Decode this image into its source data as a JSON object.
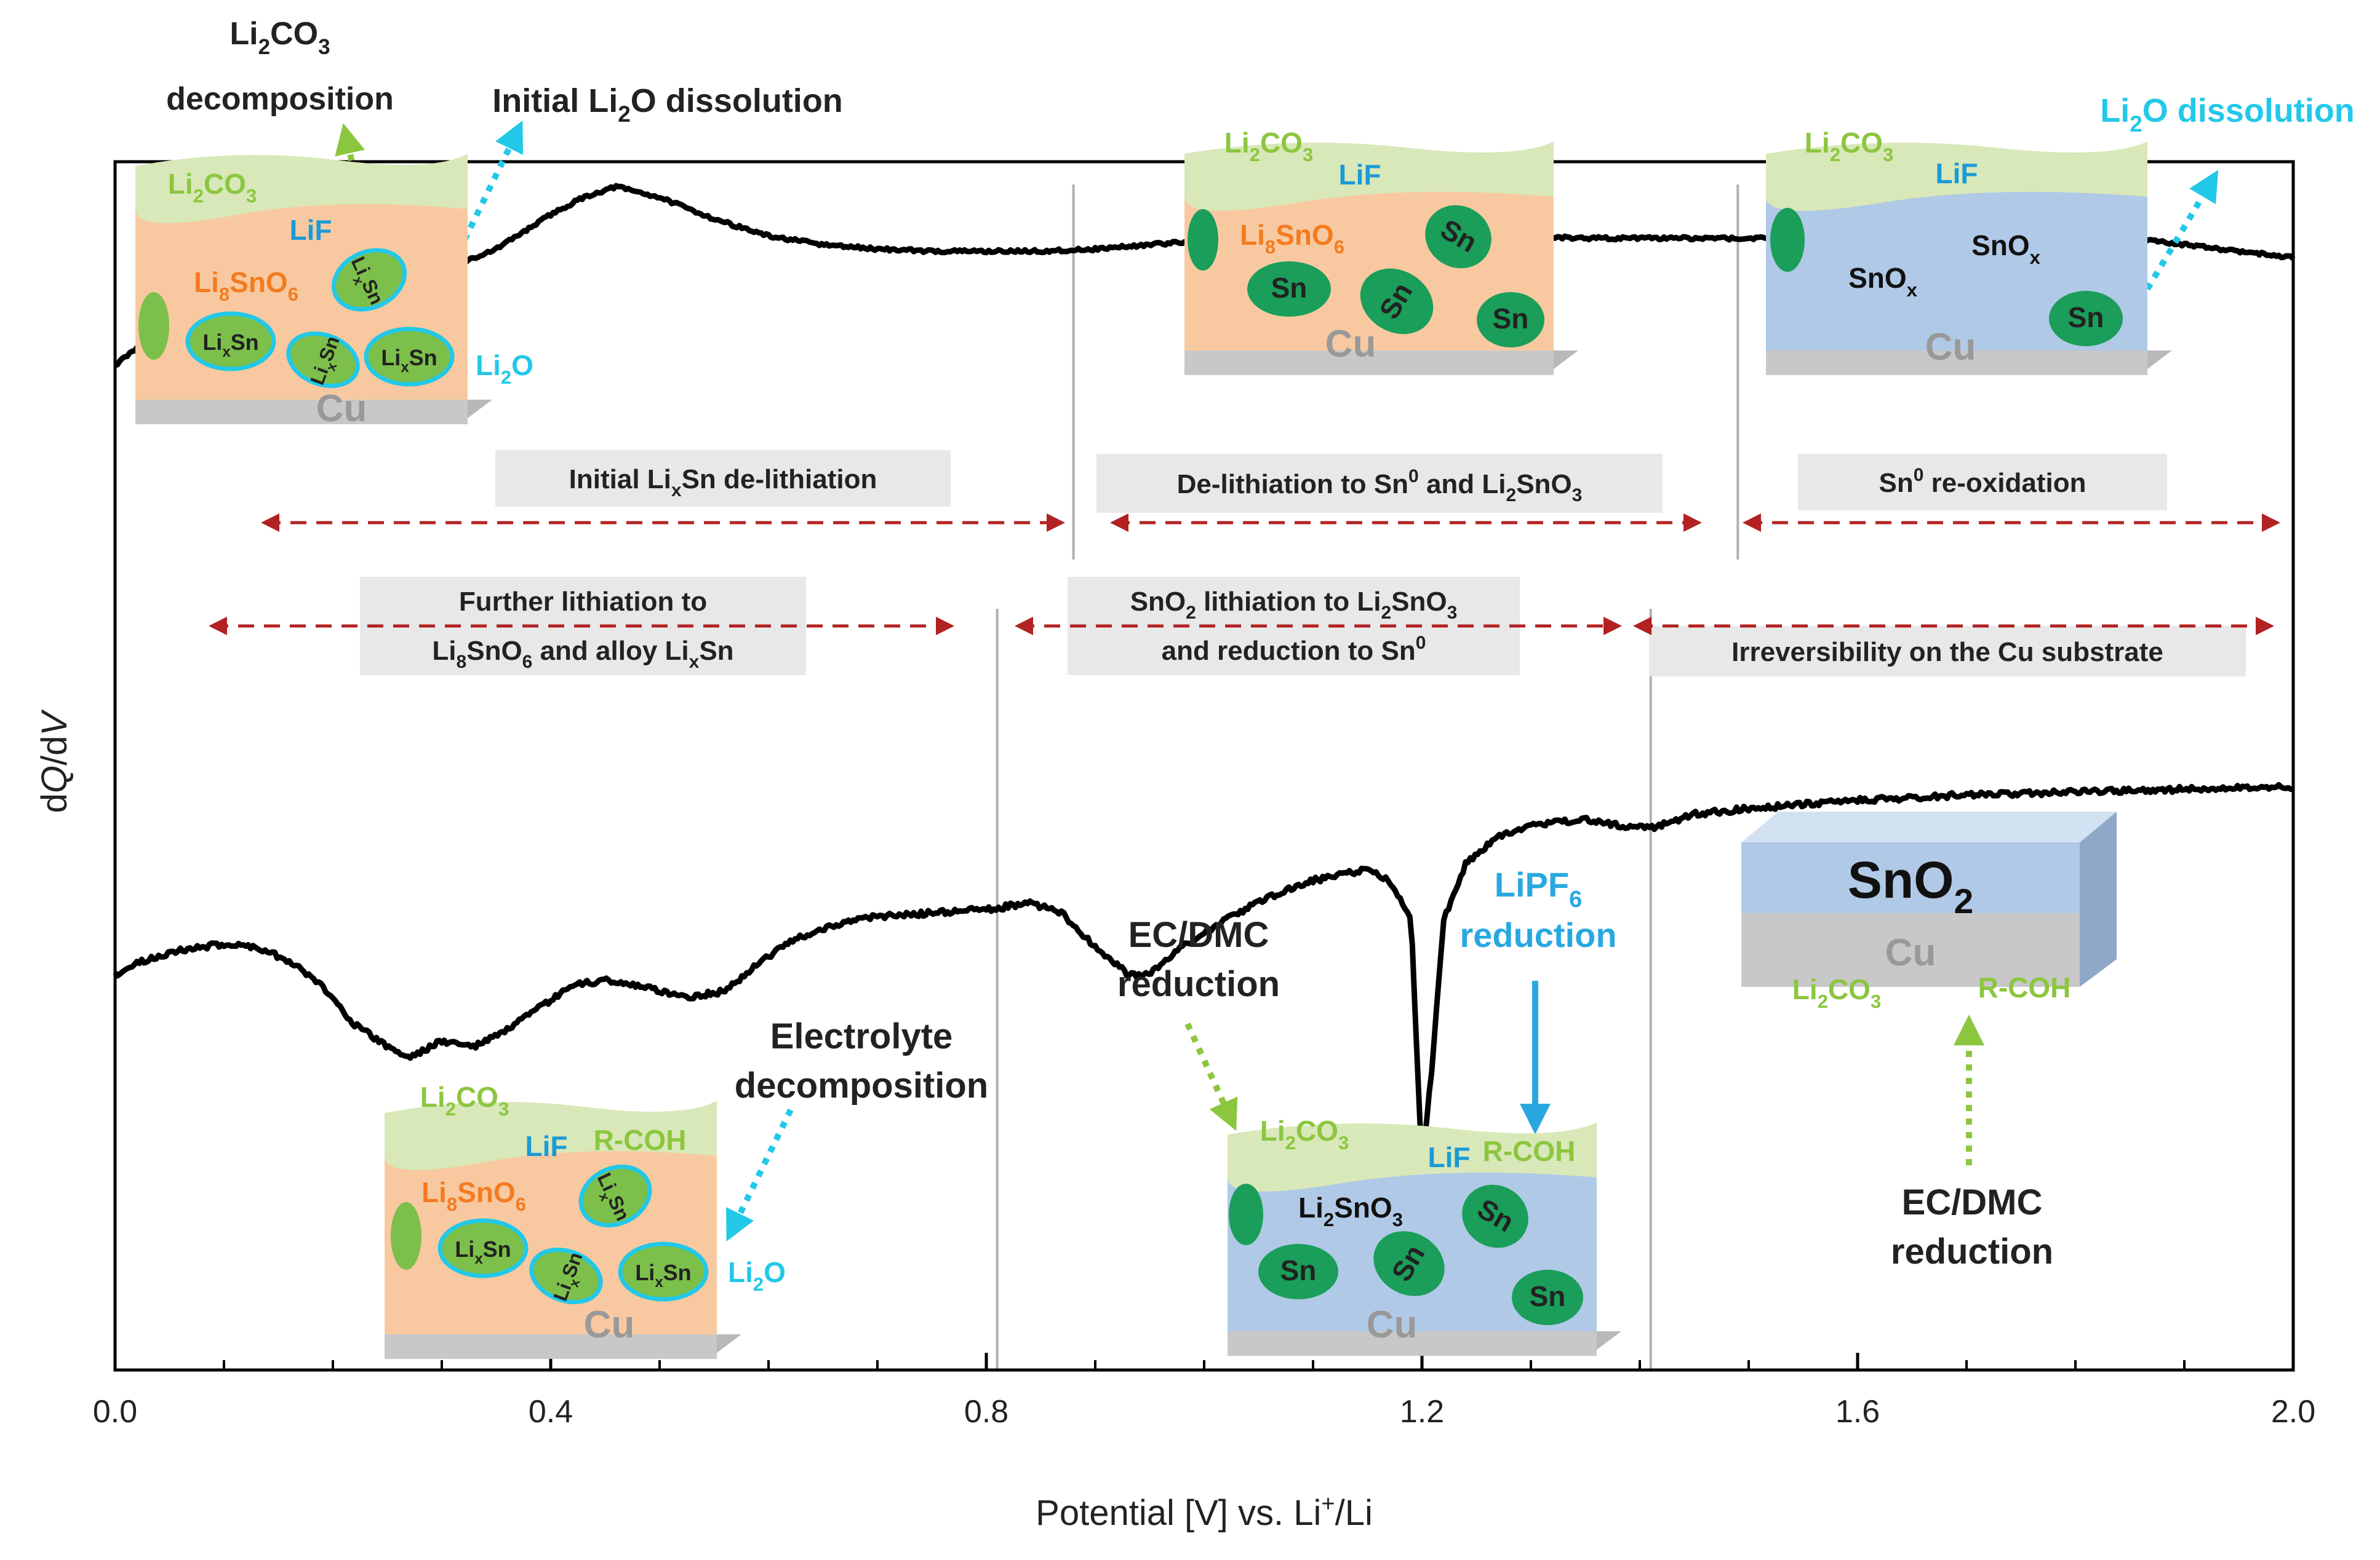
{
  "chart_data": {
    "type": "line",
    "title": "",
    "xlabel": "Potential [V] vs. Li+/Li",
    "xlabel_parts": {
      "pre": "Potential [V] vs. Li",
      "sup": "+",
      "post": "/Li"
    },
    "ylabel": "dQ/dV",
    "ylabel_parts": {
      "d1": "d",
      "q": "Q",
      "slash": "/d",
      "v": "V"
    },
    "xlim": [
      0.0,
      2.0
    ],
    "x_ticks": [
      "0.0",
      "0.4",
      "0.8",
      "1.2",
      "1.6",
      "2.0"
    ],
    "y_ticks": "none",
    "grid": false,
    "regions": {
      "delithiation_boundaries_V": [
        0.88,
        1.49
      ],
      "lithiation_boundaries_V": [
        0.81,
        1.41
      ]
    },
    "series": [
      {
        "name": "",
        "role": "de-lithiation (upper curve, relative dQ/dV)",
        "x": [
          0.0,
          0.02,
          0.04,
          0.06,
          0.08,
          0.1,
          0.15,
          0.2,
          0.25,
          0.3,
          0.35,
          0.4,
          0.43,
          0.46,
          0.5,
          0.55,
          0.6,
          0.65,
          0.7,
          0.75,
          0.8,
          0.85,
          0.9,
          0.95,
          1.0,
          1.05,
          1.1,
          1.15,
          1.2,
          1.25,
          1.3,
          1.35,
          1.4,
          1.45,
          1.5,
          1.55,
          1.6,
          1.65,
          1.7,
          1.75,
          1.8,
          1.85,
          1.9,
          1.95,
          2.0
        ],
        "y": [
          0.58,
          0.62,
          0.67,
          0.71,
          0.75,
          0.76,
          0.765,
          0.77,
          0.78,
          0.8,
          0.85,
          0.93,
          0.97,
          0.995,
          0.97,
          0.92,
          0.88,
          0.86,
          0.85,
          0.845,
          0.845,
          0.845,
          0.85,
          0.86,
          0.87,
          0.88,
          0.885,
          0.89,
          0.89,
          0.885,
          0.88,
          0.875,
          0.875,
          0.875,
          0.875,
          0.876,
          0.877,
          0.878,
          0.879,
          0.88,
          0.88,
          0.875,
          0.86,
          0.845,
          0.83
        ]
      },
      {
        "name": "",
        "role": "lithiation (lower curve, relative dQ/dV)",
        "x": [
          0.0,
          0.02,
          0.05,
          0.08,
          0.1,
          0.13,
          0.16,
          0.19,
          0.22,
          0.25,
          0.27,
          0.28,
          0.3,
          0.33,
          0.36,
          0.39,
          0.42,
          0.45,
          0.48,
          0.5,
          0.53,
          0.56,
          0.59,
          0.62,
          0.66,
          0.7,
          0.74,
          0.78,
          0.81,
          0.84,
          0.87,
          0.9,
          0.93,
          0.95,
          0.98,
          1.02,
          1.06,
          1.1,
          1.15,
          1.17,
          1.19,
          1.2,
          1.21,
          1.22,
          1.24,
          1.27,
          1.3,
          1.35,
          1.38,
          1.41,
          1.45,
          1.5,
          1.6,
          1.7,
          1.8,
          1.9,
          2.0
        ],
        "y": [
          0.35,
          0.37,
          0.39,
          0.4,
          0.405,
          0.4,
          0.375,
          0.33,
          0.26,
          0.22,
          0.2,
          0.21,
          0.23,
          0.22,
          0.25,
          0.29,
          0.33,
          0.34,
          0.33,
          0.32,
          0.31,
          0.32,
          0.37,
          0.41,
          0.44,
          0.455,
          0.46,
          0.465,
          0.47,
          0.48,
          0.46,
          0.4,
          0.35,
          0.35,
          0.4,
          0.45,
          0.49,
          0.52,
          0.54,
          0.52,
          0.45,
          0.0,
          0.2,
          0.45,
          0.55,
          0.6,
          0.62,
          0.63,
          0.62,
          0.615,
          0.64,
          0.65,
          0.665,
          0.675,
          0.68,
          0.685,
          0.69
        ]
      }
    ],
    "annotations": {
      "delith_regions": [
        {
          "parts": [
            [
              "Initial Li",
              ""
            ],
            [
              "x",
              "sub"
            ],
            [
              "Sn de-lithiation",
              ""
            ]
          ]
        },
        {
          "parts": [
            [
              "De-lithiation to Sn",
              ""
            ],
            [
              "0",
              "sup"
            ],
            [
              " and Li",
              ""
            ],
            [
              "2",
              "sub"
            ],
            [
              "SnO",
              ""
            ],
            [
              "3",
              "sub"
            ]
          ]
        },
        {
          "parts": [
            [
              "Sn",
              ""
            ],
            [
              "0",
              "sup"
            ],
            [
              " re-oxidation",
              ""
            ]
          ]
        }
      ],
      "lith_regions": [
        {
          "line1": [
            [
              "Further lithiation to",
              ""
            ]
          ],
          "line2": [
            [
              "Li",
              ""
            ],
            [
              "8",
              "sub"
            ],
            [
              "SnO",
              ""
            ],
            [
              "6",
              "sub"
            ],
            [
              " and alloy Li",
              ""
            ],
            [
              "x",
              "sub"
            ],
            [
              "Sn",
              ""
            ]
          ]
        },
        {
          "line1": [
            [
              "SnO",
              ""
            ],
            [
              "2",
              "sub"
            ],
            [
              " lithiation to Li",
              ""
            ],
            [
              "2",
              "sub"
            ],
            [
              "SnO",
              ""
            ],
            [
              "3",
              "sub"
            ]
          ],
          "line2": [
            [
              "and reduction to Sn",
              ""
            ],
            [
              "0",
              "sup"
            ]
          ]
        },
        {
          "line1": [
            [
              "Irreversibility on the Cu substrate",
              ""
            ]
          ]
        }
      ],
      "process_labels": {
        "li2co3_decomposition": {
          "line1": [
            [
              "Li",
              ""
            ],
            [
              "2",
              "sub"
            ],
            [
              "CO",
              ""
            ],
            [
              "3",
              "sub"
            ]
          ],
          "line2": [
            [
              "decomposition",
              ""
            ]
          ]
        },
        "initial_li2o_dissolution": [
          [
            "Initial  Li",
            ""
          ],
          [
            "2",
            "sub"
          ],
          [
            "O dissolution",
            ""
          ]
        ],
        "li2o_dissolution": [
          [
            "Li",
            ""
          ],
          [
            "2",
            "sub"
          ],
          [
            "O dissolution",
            ""
          ]
        ],
        "electrolyte_decomposition": [
          "Electrolyte",
          "decomposition"
        ],
        "ec_dmc_reduction": [
          "EC/DMC",
          "reduction"
        ],
        "lipf6_reduction": {
          "line1": [
            [
              "LiPF",
              ""
            ],
            [
              "6",
              "sub"
            ]
          ],
          "line2": [
            [
              "reduction",
              ""
            ]
          ]
        }
      },
      "schematics": {
        "li2co3": [
          [
            "Li",
            ""
          ],
          [
            "2",
            "sub"
          ],
          [
            "CO",
            ""
          ],
          [
            "3",
            "sub"
          ]
        ],
        "lif": "LiF",
        "li8sno6": [
          [
            "Li",
            ""
          ],
          [
            "8",
            "sub"
          ],
          [
            "SnO",
            ""
          ],
          [
            "6",
            "sub"
          ]
        ],
        "lixsn": [
          [
            "Li",
            ""
          ],
          [
            "x",
            "sub"
          ],
          [
            "Sn",
            ""
          ]
        ],
        "li2o": [
          [
            "Li",
            ""
          ],
          [
            "2",
            "sub"
          ],
          [
            "O",
            ""
          ]
        ],
        "cu": "Cu",
        "sn": "Sn",
        "snox": [
          [
            "SnO",
            ""
          ],
          [
            "x",
            "sub"
          ]
        ],
        "li2sno3": [
          [
            "Li",
            ""
          ],
          [
            "2",
            "sub"
          ],
          [
            "SnO",
            ""
          ],
          [
            "3",
            "sub"
          ]
        ],
        "rcoh": "R-COH",
        "sno2": [
          [
            "SnO",
            ""
          ],
          [
            "2",
            "sub"
          ]
        ]
      }
    }
  },
  "colors": {
    "curve": "#000000",
    "arrow_red": "#b22222",
    "label_green": "#8cc63f",
    "label_cyan": "#22c8e8",
    "label_lipf6": "#29a8e0",
    "label_orange": "#f47b20",
    "label_lif": "#1a9ad6",
    "sei_green": "#d8e8b8",
    "orange_layer": "#f8c9a0",
    "blue_layer": "#b0c9e6",
    "cu_gray": "#c8c8c8",
    "sn_green": "#1a9e5a",
    "lixsn_fill": "#7cbf4a",
    "region_box": "#e8e8e8"
  }
}
